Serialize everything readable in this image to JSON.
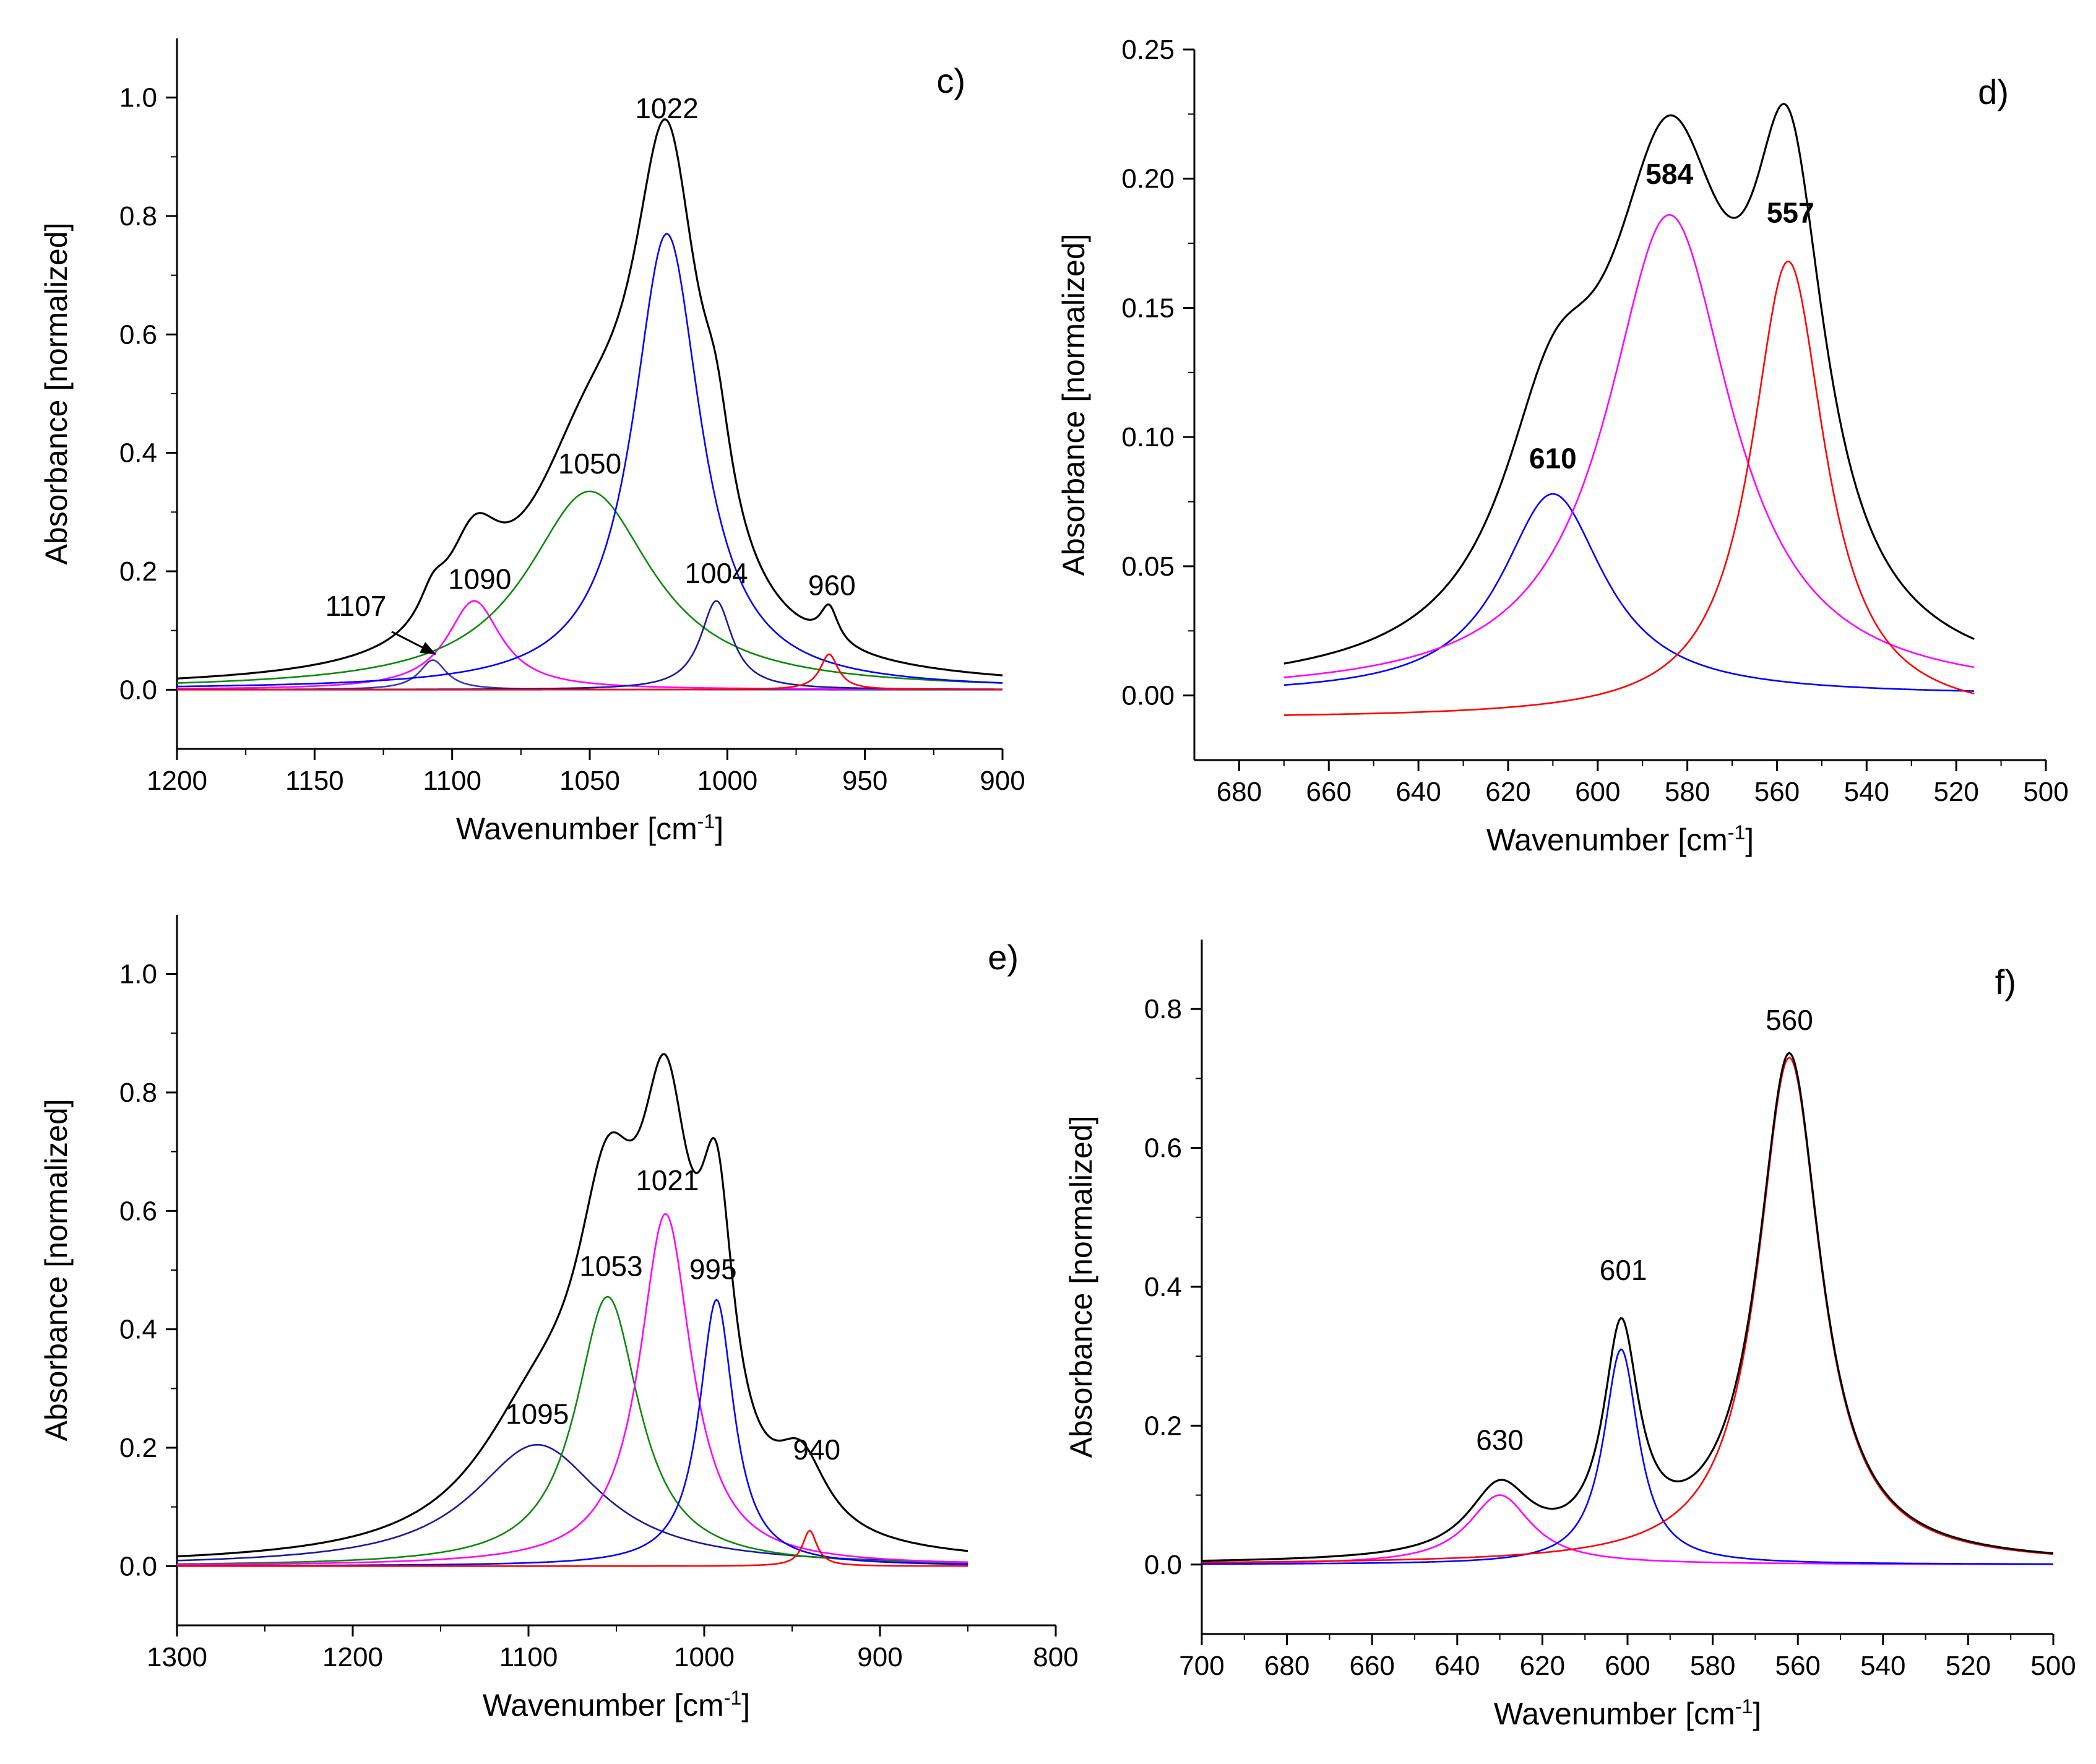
{
  "chart_data": [
    {
      "id": "c",
      "type": "line",
      "panel_label": "c)",
      "xlabel": "Wavenumber [cm",
      "xlabel_sup": "-1",
      "xlabel_end": "]",
      "ylabel": "Absorbance [normalized]",
      "xlim": [
        1200,
        900
      ],
      "ylim": [
        -0.1,
        1.1
      ],
      "x_ticks": [
        1200,
        1150,
        1100,
        1050,
        1000,
        950,
        900
      ],
      "x_tick_labels": [
        "1200",
        "1150",
        "1100",
        "1050",
        "1000",
        "950",
        "900"
      ],
      "y_ticks": [
        0.0,
        0.2,
        0.4,
        0.6,
        0.8,
        1.0
      ],
      "y_tick_labels": [
        "0.0",
        "0.2",
        "0.4",
        "0.6",
        "0.8",
        "1.0"
      ],
      "domain": [
        1200,
        900
      ],
      "series": [
        {
          "name": "fit-1107",
          "color": "#3a36b8",
          "peaks": [
            {
              "center": 1107,
              "height": 0.05,
              "width": 6
            }
          ]
        },
        {
          "name": "fit-1090",
          "color": "#ff00ff",
          "peaks": [
            {
              "center": 1092,
              "height": 0.15,
              "width": 12
            }
          ]
        },
        {
          "name": "fit-1050",
          "color": "#0a8a0a",
          "peaks": [
            {
              "center": 1050,
              "height": 0.335,
              "width": 28
            }
          ]
        },
        {
          "name": "fit-1022",
          "color": "#0000ff",
          "peaks": [
            {
              "center": 1022,
              "height": 0.77,
              "width": 15
            }
          ]
        },
        {
          "name": "fit-1004",
          "color": "#1a1a9e",
          "peaks": [
            {
              "center": 1004,
              "height": 0.15,
              "width": 7
            }
          ]
        },
        {
          "name": "fit-960",
          "color": "#ff0000",
          "peaks": [
            {
              "center": 963,
              "height": 0.06,
              "width": 4
            }
          ]
        },
        {
          "name": "spectrum",
          "color": "#000000",
          "peaks": [
            {
              "center": 1107,
              "height": 0.05,
              "width": 6
            },
            {
              "center": 1092,
              "height": 0.15,
              "width": 12
            },
            {
              "center": 1050,
              "height": 0.335,
              "width": 28
            },
            {
              "center": 1022,
              "height": 0.77,
              "width": 15
            },
            {
              "center": 1004,
              "height": 0.15,
              "width": 7
            },
            {
              "center": 963,
              "height": 0.06,
              "width": 4
            }
          ]
        }
      ],
      "annotations": [
        {
          "text": "1022",
          "x": 1022,
          "y": 0.965
        },
        {
          "text": "1050",
          "x": 1050,
          "y": 0.365
        },
        {
          "text": "1090",
          "x": 1090,
          "y": 0.17
        },
        {
          "text": "1107",
          "x": 1135,
          "y": 0.125
        },
        {
          "text": "1004",
          "x": 1004,
          "y": 0.18
        },
        {
          "text": "960",
          "x": 962,
          "y": 0.16
        }
      ],
      "arrow": {
        "from_x": 1122,
        "from_y": 0.098,
        "to_x": 1106,
        "to_y": 0.06
      }
    },
    {
      "id": "d",
      "type": "line",
      "panel_label": "d)",
      "xlabel": "Wavenumber [cm",
      "xlabel_sup": "-1",
      "xlabel_end": "]",
      "ylabel": "Absorbance [normalized]",
      "xlim": [
        690,
        500
      ],
      "ylim": [
        -0.025,
        0.25
      ],
      "x_ticks": [
        680,
        660,
        640,
        620,
        600,
        580,
        560,
        540,
        520,
        500
      ],
      "x_tick_labels": [
        "680",
        "660",
        "640",
        "620",
        "600",
        "580",
        "560",
        "540",
        "520",
        "500"
      ],
      "y_ticks": [
        0.0,
        0.05,
        0.1,
        0.15,
        0.2,
        0.25
      ],
      "y_tick_labels": [
        "0.00",
        "0.05",
        "0.10",
        "0.15",
        "0.20",
        "0.25"
      ],
      "domain": [
        670,
        516
      ],
      "series": [
        {
          "name": "fit-610",
          "color": "#0000ff",
          "peaks": [
            {
              "center": 610,
              "height": 0.078,
              "width": 14
            }
          ]
        },
        {
          "name": "fit-584",
          "color": "#ff00ff",
          "peaks": [
            {
              "center": 584,
              "height": 0.186,
              "width": 17
            }
          ]
        },
        {
          "name": "fit-557",
          "color": "#ff0000",
          "peaks": [
            {
              "center": 557.5,
              "height": 0.177,
              "width": 10
            }
          ],
          "offset": -0.009
        },
        {
          "name": "spectrum",
          "color": "#000000",
          "peaks": [
            {
              "center": 610,
              "height": 0.078,
              "width": 14
            },
            {
              "center": 584,
              "height": 0.186,
              "width": 17
            },
            {
              "center": 557.5,
              "height": 0.168,
              "width": 10
            }
          ]
        }
      ],
      "annotations": [
        {
          "text": "584",
          "x": 584,
          "y": 0.198
        },
        {
          "text": "557",
          "x": 557,
          "y": 0.183
        },
        {
          "text": "610",
          "x": 610,
          "y": 0.088
        }
      ],
      "label_bold": true
    },
    {
      "id": "e",
      "type": "line",
      "panel_label": "e)",
      "xlabel": "Wavenumber [cm",
      "xlabel_sup": "-1",
      "xlabel_end": "]",
      "ylabel": "Absorbance [normalized]",
      "xlim": [
        1300,
        800
      ],
      "ylim": [
        -0.1,
        1.1
      ],
      "x_ticks": [
        1300,
        1200,
        1100,
        1000,
        900,
        800
      ],
      "x_tick_labels": [
        "1300",
        "1200",
        "1100",
        "1000",
        "900",
        "800"
      ],
      "y_ticks": [
        0.0,
        0.2,
        0.4,
        0.6,
        0.8,
        1.0
      ],
      "y_tick_labels": [
        "0.0",
        "0.2",
        "0.4",
        "0.6",
        "0.8",
        "1.0"
      ],
      "domain": [
        1300,
        850
      ],
      "series": [
        {
          "name": "fit-1095",
          "color": "#1a1a9e",
          "peaks": [
            {
              "center": 1095,
              "height": 0.205,
              "width": 45
            }
          ]
        },
        {
          "name": "fit-1053",
          "color": "#0a8a0a",
          "peaks": [
            {
              "center": 1055,
              "height": 0.455,
              "width": 22
            }
          ]
        },
        {
          "name": "fit-1021",
          "color": "#ff00ff",
          "peaks": [
            {
              "center": 1022,
              "height": 0.595,
              "width": 18
            }
          ]
        },
        {
          "name": "fit-995",
          "color": "#0000ff",
          "peaks": [
            {
              "center": 993,
              "height": 0.45,
              "width": 12
            }
          ]
        },
        {
          "name": "fit-940",
          "color": "#ff0000",
          "peaks": [
            {
              "center": 940,
              "height": 0.06,
              "width": 5
            }
          ]
        },
        {
          "name": "spectrum",
          "color": "#000000",
          "peaks": [
            {
              "center": 1095,
              "height": 0.205,
              "width": 45
            },
            {
              "center": 1055,
              "height": 0.455,
              "width": 22
            },
            {
              "center": 1022,
              "height": 0.595,
              "width": 18
            },
            {
              "center": 993,
              "height": 0.45,
              "width": 12
            },
            {
              "center": 945,
              "height": 0.12,
              "width": 18
            }
          ]
        }
      ],
      "annotations": [
        {
          "text": "1021",
          "x": 1021,
          "y": 0.635
        },
        {
          "text": "995",
          "x": 995,
          "y": 0.485
        },
        {
          "text": "1053",
          "x": 1053,
          "y": 0.49
        },
        {
          "text": "1095",
          "x": 1095,
          "y": 0.24
        },
        {
          "text": "940",
          "x": 936,
          "y": 0.18
        }
      ]
    },
    {
      "id": "f",
      "type": "line",
      "panel_label": "f)",
      "xlabel": "Wavenumber [cm",
      "xlabel_sup": "-1",
      "xlabel_end": "]",
      "ylabel": "Absorbance [normalized]",
      "xlim": [
        700,
        500
      ],
      "ylim": [
        -0.1,
        0.9
      ],
      "x_ticks": [
        700,
        680,
        660,
        640,
        620,
        600,
        580,
        560,
        540,
        520,
        500
      ],
      "x_tick_labels": [
        "700",
        "680",
        "660",
        "640",
        "620",
        "600",
        "580",
        "560",
        "540",
        "520",
        "500"
      ],
      "y_ticks": [
        0.0,
        0.2,
        0.4,
        0.6,
        0.8
      ],
      "y_tick_labels": [
        "0.0",
        "0.2",
        "0.4",
        "0.6",
        "0.8"
      ],
      "domain": [
        700,
        500
      ],
      "series": [
        {
          "name": "fit-630",
          "color": "#ff00ff",
          "peaks": [
            {
              "center": 630,
              "height": 0.1,
              "width": 9
            }
          ]
        },
        {
          "name": "fit-601",
          "color": "#0000ff",
          "peaks": [
            {
              "center": 601.5,
              "height": 0.31,
              "width": 5
            }
          ]
        },
        {
          "name": "fit-560",
          "color": "#ff0000",
          "peaks": [
            {
              "center": 562,
              "height": 0.73,
              "width": 9
            }
          ]
        },
        {
          "name": "spectrum",
          "color": "#000000",
          "peaks": [
            {
              "center": 630,
              "height": 0.1,
              "width": 9
            },
            {
              "center": 601.5,
              "height": 0.31,
              "width": 5
            },
            {
              "center": 562,
              "height": 0.73,
              "width": 9
            }
          ]
        }
      ],
      "annotations": [
        {
          "text": "560",
          "x": 562,
          "y": 0.77
        },
        {
          "text": "601",
          "x": 601,
          "y": 0.41
        },
        {
          "text": "630",
          "x": 630,
          "y": 0.165
        }
      ]
    }
  ]
}
